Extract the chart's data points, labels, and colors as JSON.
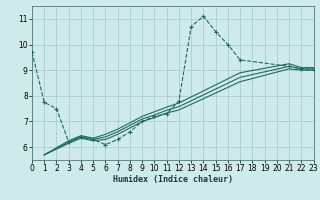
{
  "bg_color": "#ceeaea",
  "grid_color": "#aacfcf",
  "line_color": "#1e6b5e",
  "xlabel": "Humidex (Indice chaleur)",
  "xlim": [
    0,
    23
  ],
  "ylim": [
    5.5,
    11.5
  ],
  "xticks": [
    0,
    1,
    2,
    3,
    4,
    5,
    6,
    7,
    8,
    9,
    10,
    11,
    12,
    13,
    14,
    15,
    16,
    17,
    18,
    19,
    20,
    21,
    22,
    23
  ],
  "yticks": [
    6,
    7,
    8,
    9,
    10,
    11
  ],
  "main_x": [
    0,
    1,
    2,
    3,
    4,
    5,
    6,
    7,
    8,
    9,
    10,
    11,
    12,
    13,
    14,
    15,
    16,
    17,
    21,
    22,
    23
  ],
  "main_y": [
    9.7,
    7.75,
    7.5,
    6.2,
    6.4,
    6.3,
    6.1,
    6.3,
    6.6,
    7.0,
    7.2,
    7.3,
    7.8,
    10.7,
    11.1,
    10.5,
    10.0,
    9.4,
    9.15,
    9.05,
    9.0
  ],
  "line2_x": [
    1,
    3,
    4,
    5,
    6,
    7,
    8,
    9,
    10,
    11,
    12,
    17,
    21,
    22,
    23
  ],
  "line2_y": [
    5.7,
    6.15,
    6.35,
    6.25,
    6.3,
    6.5,
    6.75,
    7.0,
    7.15,
    7.33,
    7.45,
    8.55,
    9.05,
    9.0,
    9.0
  ],
  "line3_x": [
    1,
    3,
    4,
    5,
    6,
    7,
    8,
    9,
    10,
    11,
    12,
    17,
    21,
    22,
    23
  ],
  "line3_y": [
    5.7,
    6.2,
    6.4,
    6.3,
    6.4,
    6.6,
    6.85,
    7.1,
    7.25,
    7.44,
    7.58,
    8.72,
    9.15,
    9.05,
    9.05
  ],
  "line4_x": [
    1,
    3,
    4,
    5,
    6,
    7,
    8,
    9,
    10,
    11,
    12,
    17,
    21,
    22,
    23
  ],
  "line4_y": [
    5.7,
    6.25,
    6.45,
    6.35,
    6.5,
    6.7,
    6.95,
    7.2,
    7.38,
    7.56,
    7.72,
    8.9,
    9.25,
    9.1,
    9.1
  ]
}
